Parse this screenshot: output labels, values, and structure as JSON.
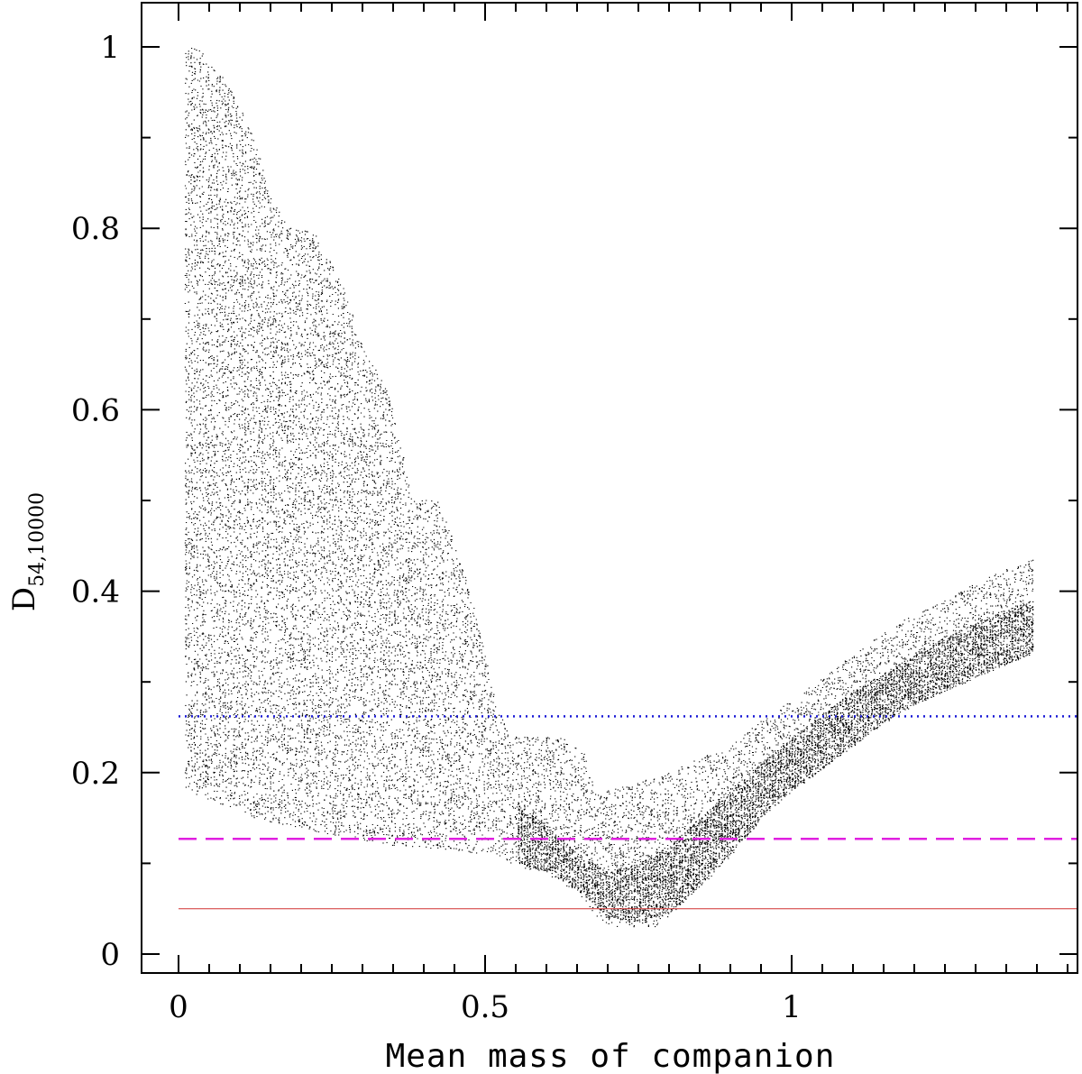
{
  "chart_data": {
    "type": "scatter",
    "title": "",
    "xlabel": "Mean mass of companion",
    "ylabel": "D",
    "ylabel_subscript": "54,10000",
    "xlim": [
      -0.06,
      1.47
    ],
    "ylim": [
      -0.04,
      1.05
    ],
    "x_ticks": [
      0,
      0.5,
      1
    ],
    "x_tick_labels": [
      "0",
      "0.5",
      "1"
    ],
    "y_ticks": [
      0,
      0.2,
      0.4,
      0.6,
      0.8,
      1
    ],
    "y_tick_labels": [
      "0",
      "0.2",
      "0.4",
      "0.6",
      "0.8",
      "1"
    ],
    "x_minor_step": 0.05,
    "y_minor_step": 0.1,
    "grid": false,
    "legend": "none",
    "envelope": {
      "x": [
        0.01,
        0.03,
        0.05,
        0.08,
        0.1,
        0.12,
        0.15,
        0.18,
        0.22,
        0.26,
        0.3,
        0.34,
        0.38,
        0.42,
        0.46,
        0.5,
        0.52,
        0.54,
        0.58,
        0.62,
        0.66,
        0.68,
        0.7,
        0.72,
        0.75,
        0.78,
        0.8,
        0.83,
        0.86,
        0.9,
        0.95,
        1.0,
        1.05,
        1.1,
        1.15,
        1.2,
        1.25,
        1.3,
        1.35,
        1.39
      ],
      "upper": [
        1.0,
        1.0,
        0.98,
        0.96,
        0.93,
        0.9,
        0.83,
        0.8,
        0.795,
        0.75,
        0.665,
        0.62,
        0.5,
        0.5,
        0.43,
        0.33,
        0.27,
        0.24,
        0.24,
        0.24,
        0.22,
        0.175,
        0.18,
        0.185,
        0.19,
        0.195,
        0.2,
        0.21,
        0.22,
        0.23,
        0.26,
        0.28,
        0.305,
        0.33,
        0.355,
        0.375,
        0.39,
        0.41,
        0.425,
        0.435
      ],
      "lower": [
        0.18,
        0.175,
        0.17,
        0.16,
        0.155,
        0.15,
        0.145,
        0.14,
        0.135,
        0.13,
        0.125,
        0.12,
        0.118,
        0.115,
        0.113,
        0.11,
        0.108,
        0.1,
        0.09,
        0.08,
        0.06,
        0.04,
        0.03,
        0.03,
        0.03,
        0.03,
        0.04,
        0.065,
        0.085,
        0.115,
        0.15,
        0.18,
        0.205,
        0.23,
        0.255,
        0.275,
        0.29,
        0.305,
        0.32,
        0.33
      ]
    },
    "dense_band": {
      "x": [
        0.55,
        0.6,
        0.65,
        0.7,
        0.75,
        0.8,
        0.85,
        0.9,
        0.95,
        1.0,
        1.05,
        1.1,
        1.15,
        1.2,
        1.25,
        1.3,
        1.35,
        1.39
      ],
      "upper": [
        0.17,
        0.14,
        0.11,
        0.09,
        0.1,
        0.12,
        0.15,
        0.18,
        0.21,
        0.24,
        0.265,
        0.29,
        0.31,
        0.33,
        0.35,
        0.365,
        0.38,
        0.39
      ],
      "lower": [
        0.1,
        0.09,
        0.07,
        0.04,
        0.035,
        0.045,
        0.075,
        0.11,
        0.15,
        0.18,
        0.205,
        0.23,
        0.255,
        0.275,
        0.29,
        0.305,
        0.32,
        0.33
      ]
    },
    "hlines": [
      {
        "y": 0.262,
        "style": "dotted",
        "color": "#1a1ad6"
      },
      {
        "y": 0.127,
        "style": "dashed",
        "color": "#e020e0"
      },
      {
        "y": 0.05,
        "style": "solid",
        "color": "#d03030"
      }
    ],
    "hline_xrange": [
      0.0,
      1.47
    ]
  }
}
